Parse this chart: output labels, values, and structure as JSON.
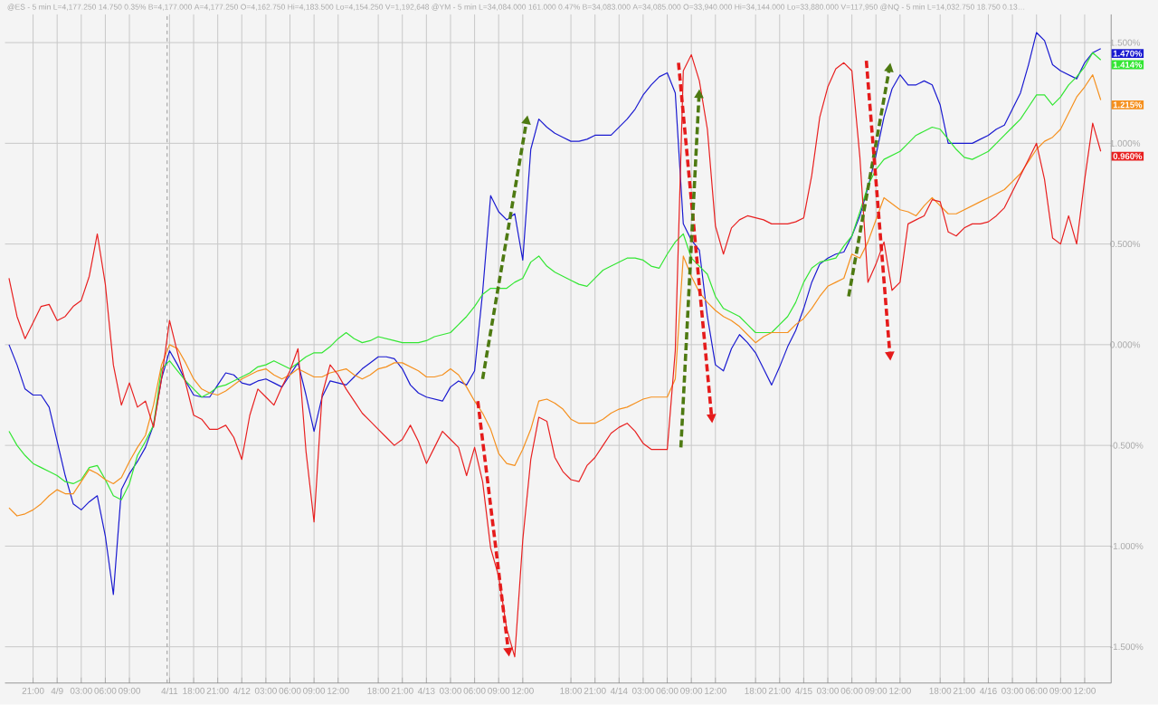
{
  "chart_data": {
    "type": "line",
    "grid": true,
    "categories": [
      null,
      null,
      null,
      "21:00",
      null,
      null,
      "4/9",
      null,
      null,
      "03:00",
      null,
      null,
      "06:00",
      null,
      null,
      "09:00",
      null,
      null,
      null,
      null,
      "4/11",
      null,
      null,
      "18:00",
      null,
      null,
      "21:00",
      null,
      null,
      "4/12",
      null,
      null,
      "03:00",
      null,
      null,
      "06:00",
      null,
      null,
      "09:00",
      null,
      null,
      "12:00",
      null,
      null,
      null,
      null,
      "18:00",
      null,
      null,
      "21:00",
      null,
      null,
      "4/13",
      null,
      null,
      "03:00",
      null,
      null,
      "06:00",
      null,
      null,
      "09:00",
      null,
      null,
      "12:00",
      null,
      null,
      null,
      null,
      null,
      "18:00",
      null,
      null,
      "21:00",
      null,
      null,
      "4/14",
      null,
      null,
      "03:00",
      null,
      null,
      "06:00",
      null,
      null,
      "09:00",
      null,
      null,
      "12:00",
      null,
      null,
      null,
      null,
      "18:00",
      null,
      null,
      "21:00",
      null,
      null,
      "4/15",
      null,
      null,
      "03:00",
      null,
      null,
      "06:00",
      null,
      null,
      "09:00",
      null,
      null,
      "12:00",
      null,
      null,
      null,
      null,
      "18:00",
      null,
      null,
      "21:00",
      null,
      null,
      "4/16",
      null,
      null,
      "03:00",
      null,
      null,
      "06:00",
      null,
      null,
      "09:00",
      null,
      null,
      "12:00",
      null,
      null
    ],
    "ylim": [
      -1.68,
      1.64
    ],
    "yticks": [
      {
        "value": 1.5,
        "label": "1.500%"
      },
      {
        "value": 1.0,
        "label": "1.000%"
      },
      {
        "value": 0.5,
        "label": "0.500%"
      },
      {
        "value": 0.0,
        "label": "0.000%"
      },
      {
        "value": -0.5,
        "label": "-0.500%"
      },
      {
        "value": -1.0,
        "label": "-1.000%"
      },
      {
        "value": -1.5,
        "label": "-1.500%"
      }
    ],
    "ref_lines": [
      {
        "axis": "x",
        "value": "4/11",
        "color": "#999999",
        "line_style": "dashed"
      }
    ],
    "series": [
      {
        "color": "#1a1ad0",
        "values": [
          0.0,
          -0.1,
          -0.22,
          -0.25,
          -0.25,
          -0.31,
          -0.48,
          -0.65,
          -0.79,
          -0.82,
          -0.78,
          -0.75,
          -0.95,
          -1.24,
          -0.72,
          -0.64,
          -0.58,
          -0.51,
          -0.4,
          -0.17,
          -0.03,
          -0.1,
          -0.18,
          -0.25,
          -0.26,
          -0.26,
          -0.2,
          -0.14,
          -0.15,
          -0.19,
          -0.2,
          -0.18,
          -0.17,
          -0.19,
          -0.21,
          -0.15,
          -0.09,
          -0.25,
          -0.43,
          -0.26,
          -0.18,
          -0.19,
          -0.2,
          -0.16,
          -0.12,
          -0.09,
          -0.06,
          -0.06,
          -0.07,
          -0.12,
          -0.2,
          -0.24,
          -0.26,
          -0.27,
          -0.28,
          -0.21,
          -0.18,
          -0.2,
          -0.13,
          0.26,
          0.74,
          0.66,
          0.62,
          0.65,
          0.42,
          0.97,
          1.12,
          1.08,
          1.05,
          1.03,
          1.01,
          1.01,
          1.02,
          1.04,
          1.04,
          1.04,
          1.08,
          1.12,
          1.17,
          1.24,
          1.29,
          1.33,
          1.35,
          1.25,
          0.6,
          0.52,
          0.47,
          0.14,
          -0.1,
          -0.13,
          -0.02,
          0.05,
          0.01,
          -0.04,
          -0.12,
          -0.2,
          -0.11,
          -0.01,
          0.07,
          0.18,
          0.31,
          0.4,
          0.43,
          0.45,
          0.46,
          0.54,
          0.64,
          0.78,
          0.94,
          1.13,
          1.27,
          1.34,
          1.29,
          1.29,
          1.31,
          1.29,
          1.19,
          1.0,
          1.0,
          1.0,
          1.0,
          1.02,
          1.04,
          1.07,
          1.09,
          1.17,
          1.25,
          1.39,
          1.55,
          1.51,
          1.39,
          1.36,
          1.34,
          1.32,
          1.4,
          1.45,
          1.47
        ]
      },
      {
        "color": "#33e633",
        "values": [
          -0.43,
          -0.5,
          -0.55,
          -0.59,
          -0.61,
          -0.63,
          -0.65,
          -0.68,
          -0.69,
          -0.67,
          -0.61,
          -0.6,
          -0.67,
          -0.75,
          -0.77,
          -0.69,
          -0.55,
          -0.48,
          -0.4,
          -0.12,
          -0.08,
          -0.13,
          -0.18,
          -0.22,
          -0.26,
          -0.24,
          -0.21,
          -0.2,
          -0.18,
          -0.16,
          -0.14,
          -0.11,
          -0.1,
          -0.08,
          -0.1,
          -0.12,
          -0.09,
          -0.06,
          -0.04,
          -0.04,
          -0.01,
          0.03,
          0.06,
          0.03,
          0.01,
          0.02,
          0.04,
          0.03,
          0.02,
          0.01,
          0.01,
          0.01,
          0.02,
          0.04,
          0.05,
          0.06,
          0.1,
          0.14,
          0.19,
          0.25,
          0.28,
          0.28,
          0.28,
          0.31,
          0.33,
          0.41,
          0.44,
          0.39,
          0.36,
          0.34,
          0.32,
          0.3,
          0.29,
          0.33,
          0.37,
          0.39,
          0.41,
          0.43,
          0.43,
          0.42,
          0.39,
          0.38,
          0.45,
          0.51,
          0.55,
          0.43,
          0.39,
          0.35,
          0.24,
          0.18,
          0.16,
          0.14,
          0.1,
          0.06,
          0.06,
          0.06,
          0.1,
          0.14,
          0.21,
          0.31,
          0.38,
          0.41,
          0.42,
          0.43,
          0.49,
          0.54,
          0.66,
          0.79,
          0.87,
          0.92,
          0.94,
          0.96,
          1.0,
          1.04,
          1.06,
          1.08,
          1.07,
          1.02,
          0.97,
          0.93,
          0.92,
          0.94,
          0.96,
          1.0,
          1.04,
          1.08,
          1.12,
          1.18,
          1.24,
          1.24,
          1.19,
          1.23,
          1.29,
          1.33,
          1.38,
          1.45,
          1.414
        ]
      },
      {
        "color": "#f5901e",
        "values": [
          -0.81,
          -0.85,
          -0.84,
          -0.82,
          -0.79,
          -0.75,
          -0.72,
          -0.74,
          -0.74,
          -0.68,
          -0.62,
          -0.64,
          -0.67,
          -0.69,
          -0.66,
          -0.58,
          -0.51,
          -0.45,
          -0.3,
          -0.1,
          0.0,
          -0.02,
          -0.09,
          -0.17,
          -0.22,
          -0.24,
          -0.25,
          -0.23,
          -0.2,
          -0.17,
          -0.15,
          -0.13,
          -0.12,
          -0.15,
          -0.17,
          -0.15,
          -0.12,
          -0.14,
          -0.16,
          -0.16,
          -0.14,
          -0.13,
          -0.12,
          -0.15,
          -0.17,
          -0.15,
          -0.12,
          -0.11,
          -0.09,
          -0.09,
          -0.11,
          -0.13,
          -0.16,
          -0.16,
          -0.15,
          -0.12,
          -0.15,
          -0.21,
          -0.28,
          -0.34,
          -0.42,
          -0.54,
          -0.59,
          -0.6,
          -0.52,
          -0.42,
          -0.28,
          -0.27,
          -0.29,
          -0.32,
          -0.37,
          -0.39,
          -0.39,
          -0.39,
          -0.37,
          -0.34,
          -0.32,
          -0.31,
          -0.29,
          -0.27,
          -0.26,
          -0.26,
          -0.26,
          -0.17,
          0.44,
          0.34,
          0.26,
          0.21,
          0.17,
          0.14,
          0.12,
          0.09,
          0.05,
          0.01,
          0.04,
          0.06,
          0.06,
          0.06,
          0.1,
          0.13,
          0.18,
          0.24,
          0.29,
          0.31,
          0.33,
          0.45,
          0.43,
          0.51,
          0.62,
          0.73,
          0.7,
          0.67,
          0.66,
          0.64,
          0.69,
          0.73,
          0.69,
          0.65,
          0.65,
          0.67,
          0.69,
          0.71,
          0.73,
          0.75,
          0.77,
          0.81,
          0.85,
          0.91,
          0.97,
          1.01,
          1.03,
          1.07,
          1.15,
          1.23,
          1.28,
          1.34,
          1.215
        ]
      },
      {
        "color": "#e82020",
        "values": [
          0.33,
          0.14,
          0.03,
          0.11,
          0.19,
          0.2,
          0.12,
          0.14,
          0.19,
          0.22,
          0.34,
          0.55,
          0.3,
          -0.1,
          -0.3,
          -0.19,
          -0.31,
          -0.28,
          -0.41,
          -0.17,
          0.12,
          -0.04,
          -0.19,
          -0.35,
          -0.37,
          -0.42,
          -0.42,
          -0.4,
          -0.46,
          -0.57,
          -0.35,
          -0.22,
          -0.26,
          -0.3,
          -0.21,
          -0.13,
          -0.02,
          -0.53,
          -0.88,
          -0.25,
          -0.1,
          -0.15,
          -0.22,
          -0.28,
          -0.34,
          -0.38,
          -0.42,
          -0.46,
          -0.5,
          -0.47,
          -0.4,
          -0.48,
          -0.59,
          -0.51,
          -0.43,
          -0.47,
          -0.51,
          -0.65,
          -0.51,
          -0.68,
          -1.01,
          -1.15,
          -1.41,
          -1.55,
          -0.97,
          -0.57,
          -0.36,
          -0.38,
          -0.56,
          -0.63,
          -0.67,
          -0.68,
          -0.6,
          -0.56,
          -0.5,
          -0.44,
          -0.41,
          -0.39,
          -0.43,
          -0.49,
          -0.52,
          -0.52,
          -0.52,
          -0.03,
          1.36,
          1.44,
          1.31,
          1.07,
          0.59,
          0.45,
          0.58,
          0.62,
          0.64,
          0.63,
          0.62,
          0.6,
          0.6,
          0.6,
          0.61,
          0.63,
          0.84,
          1.13,
          1.28,
          1.37,
          1.4,
          1.36,
          0.93,
          0.31,
          0.4,
          0.51,
          0.27,
          0.31,
          0.6,
          0.62,
          0.64,
          0.72,
          0.71,
          0.56,
          0.54,
          0.58,
          0.6,
          0.6,
          0.61,
          0.64,
          0.68,
          0.76,
          0.84,
          0.92,
          1.0,
          0.82,
          0.53,
          0.5,
          0.64,
          0.5,
          0.82,
          1.1,
          0.96
        ]
      }
    ],
    "annotations": [
      "@ES - 5 min  L=4,177.250  14.750  0.35%  B=4,177.000  A=4,177.250  O=4,162.750  Hi=4,183.500  Lo=4,154.250  V=1,192,648  @YM - 5 min  L=34,084.000  161.000  0.47%  B=34,083.000  A=34,085.000  O=33,940.000  Hi=34,144.000  Lo=33,880.000  V=117,950  @NQ - 5 min  L=14,032.750  18.750  0.13…",
      "1.470%",
      "1.414%",
      "1.215%",
      "0.960%"
    ]
  }
}
